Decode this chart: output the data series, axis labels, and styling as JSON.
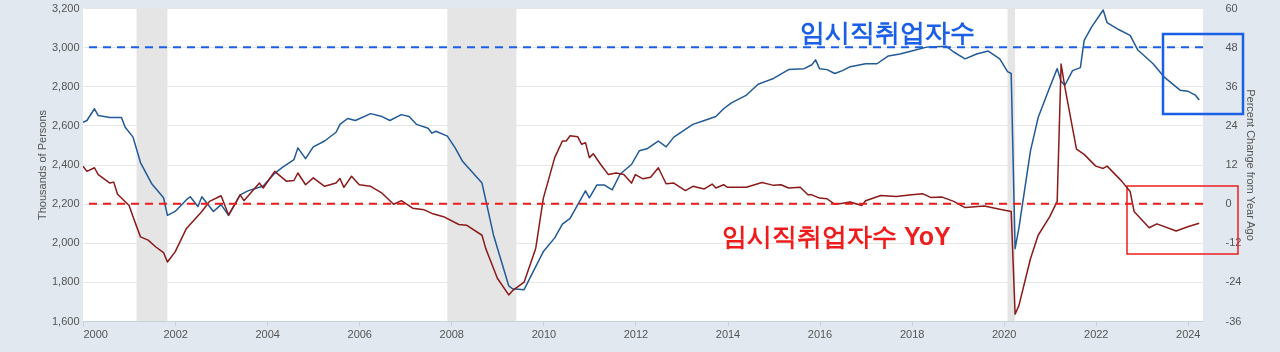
{
  "chart_data": {
    "type": "line",
    "ylabel": "Thousands of Persons",
    "y2label": "Percent Change from Year Ago",
    "xlim": [
      "2000-01",
      "2024-05"
    ],
    "xticks": [
      "2000",
      "2002",
      "2004",
      "2006",
      "2008",
      "2010",
      "2012",
      "2014",
      "2016",
      "2018",
      "2020",
      "2022",
      "2024"
    ],
    "ylim": [
      1600,
      3200
    ],
    "yticks": [
      {
        "value": 1600,
        "label": "1,600"
      },
      {
        "value": 1800,
        "label": "1,800"
      },
      {
        "value": 2000,
        "label": "2,000"
      },
      {
        "value": 2200,
        "label": "2,200"
      },
      {
        "value": 2400,
        "label": "2,400"
      },
      {
        "value": 2600,
        "label": "2,600"
      },
      {
        "value": 2800,
        "label": "2,800"
      },
      {
        "value": 3000,
        "label": "3,000"
      },
      {
        "value": 3200,
        "label": "3,200"
      }
    ],
    "y2lim": [
      -36,
      60
    ],
    "y2ticks": [
      -36,
      -24,
      -12,
      0,
      12,
      24,
      36,
      48,
      60
    ],
    "grid": "y",
    "series": [
      {
        "name": "임시직취업자수",
        "color": "#215a96",
        "x": [
          "2000-01",
          "2000-02",
          "2000-04",
          "2000-05",
          "2000-08",
          "2000-11",
          "2000-12",
          "2001-02",
          "2001-04",
          "2001-07",
          "2001-10",
          "2001-11",
          "2002-01",
          "2002-04",
          "2002-05",
          "2002-07",
          "2002-08",
          "2002-11",
          "2003-01",
          "2003-03",
          "2003-06",
          "2003-08",
          "2003-12",
          "2004-03",
          "2004-05",
          "2004-08",
          "2004-09",
          "2004-11",
          "2005-01",
          "2005-04",
          "2005-07",
          "2005-08",
          "2005-10",
          "2005-12",
          "2006-04",
          "2006-07",
          "2006-09",
          "2006-12",
          "2007-02",
          "2007-04",
          "2007-07",
          "2007-08",
          "2007-09",
          "2007-12",
          "2008-02",
          "2008-04",
          "2008-09",
          "2008-12",
          "2009-04",
          "2009-05",
          "2009-08",
          "2009-09",
          "2010-01",
          "2010-04",
          "2010-06",
          "2010-08",
          "2010-12",
          "2011-01",
          "2011-03",
          "2011-05",
          "2011-07",
          "2011-09",
          "2011-12",
          "2012-02",
          "2012-04",
          "2012-07",
          "2012-09",
          "2012-11",
          "2013-04",
          "2013-07",
          "2013-10",
          "2013-12",
          "2014-02",
          "2014-06",
          "2014-09",
          "2015-01",
          "2015-05",
          "2015-09",
          "2015-11",
          "2015-12",
          "2016-01",
          "2016-03",
          "2016-05",
          "2016-07",
          "2016-09",
          "2017-01",
          "2017-04",
          "2017-07",
          "2017-10",
          "2018-01",
          "2018-05",
          "2018-10",
          "2018-12",
          "2019-03",
          "2019-06",
          "2019-09",
          "2019-12",
          "2020-02",
          "2020-03",
          "2020-04",
          "2020-05",
          "2020-08",
          "2020-10",
          "2021-01",
          "2021-03",
          "2021-04",
          "2021-05",
          "2021-07",
          "2021-09",
          "2021-10",
          "2021-12",
          "2022-03",
          "2022-04",
          "2022-07",
          "2022-10",
          "2022-12",
          "2023-04",
          "2023-07",
          "2023-11",
          "2024-01",
          "2024-03",
          "2024-04"
        ],
        "values": [
          2615,
          2625,
          2685,
          2650,
          2640,
          2640,
          2590,
          2540,
          2410,
          2300,
          2230,
          2140,
          2160,
          2220,
          2235,
          2185,
          2235,
          2160,
          2195,
          2140,
          2245,
          2265,
          2290,
          2355,
          2385,
          2425,
          2485,
          2430,
          2490,
          2520,
          2565,
          2605,
          2635,
          2625,
          2660,
          2645,
          2625,
          2655,
          2645,
          2605,
          2585,
          2560,
          2570,
          2545,
          2485,
          2415,
          2305,
          2040,
          1780,
          1765,
          1760,
          1800,
          1955,
          2025,
          2095,
          2125,
          2265,
          2230,
          2295,
          2295,
          2270,
          2350,
          2400,
          2470,
          2480,
          2520,
          2490,
          2540,
          2605,
          2625,
          2645,
          2685,
          2715,
          2755,
          2810,
          2840,
          2885,
          2890,
          2910,
          2935,
          2890,
          2885,
          2865,
          2880,
          2900,
          2915,
          2915,
          2955,
          2965,
          2980,
          3000,
          3005,
          2975,
          2940,
          2965,
          2980,
          2940,
          2875,
          2865,
          1970,
          2075,
          2470,
          2640,
          2795,
          2890,
          2825,
          2805,
          2880,
          2895,
          3035,
          3105,
          3190,
          3125,
          3090,
          3060,
          2985,
          2915,
          2845,
          2780,
          2775,
          2755,
          2730
        ]
      },
      {
        "name": "임시직취업자수 YoY",
        "color": "#8b1a1a",
        "axis": "y2",
        "x": [
          "2000-01",
          "2000-02",
          "2000-04",
          "2000-05",
          "2000-08",
          "2000-09",
          "2000-10",
          "2001-01",
          "2001-02",
          "2001-04",
          "2001-06",
          "2001-08",
          "2001-10",
          "2001-11",
          "2002-01",
          "2002-04",
          "2002-06",
          "2002-08",
          "2002-10",
          "2003-01",
          "2003-03",
          "2003-06",
          "2003-07",
          "2003-11",
          "2003-12",
          "2004-03",
          "2004-06",
          "2004-08",
          "2004-09",
          "2004-11",
          "2005-01",
          "2005-04",
          "2005-07",
          "2005-08",
          "2005-09",
          "2005-11",
          "2006-01",
          "2006-04",
          "2006-07",
          "2006-10",
          "2006-12",
          "2007-03",
          "2007-06",
          "2007-08",
          "2007-11",
          "2008-03",
          "2008-05",
          "2008-09",
          "2008-10",
          "2009-01",
          "2009-04",
          "2009-05",
          "2009-08",
          "2009-11",
          "2010-01",
          "2010-04",
          "2010-06",
          "2010-07",
          "2010-08",
          "2010-10",
          "2010-11",
          "2010-12",
          "2011-01",
          "2011-02",
          "2011-04",
          "2011-06",
          "2011-08",
          "2011-10",
          "2011-12",
          "2012-01",
          "2012-03",
          "2012-05",
          "2012-07",
          "2012-09",
          "2012-11",
          "2013-02",
          "2013-04",
          "2013-07",
          "2013-09",
          "2013-10",
          "2013-12",
          "2014-01",
          "2014-06",
          "2014-10",
          "2015-01",
          "2015-03",
          "2015-05",
          "2015-08",
          "2015-10",
          "2015-11",
          "2016-01",
          "2016-03",
          "2016-05",
          "2016-07",
          "2016-09",
          "2016-12",
          "2017-01",
          "2017-05",
          "2017-09",
          "2018-01",
          "2018-04",
          "2018-06",
          "2018-09",
          "2018-12",
          "2019-03",
          "2019-08",
          "2019-12",
          "2020-03",
          "2020-04",
          "2020-05",
          "2020-08",
          "2020-10",
          "2021-01",
          "2021-03",
          "2021-04",
          "2021-05",
          "2021-08",
          "2021-10",
          "2022-01",
          "2022-03",
          "2022-04",
          "2022-07",
          "2022-08",
          "2022-10",
          "2022-11",
          "2023-03",
          "2023-05",
          "2023-10",
          "2024-01",
          "2024-04"
        ],
        "values": [
          11.5,
          9.9,
          11.0,
          8.9,
          6.3,
          6.6,
          2.9,
          -0.6,
          -4.0,
          -10.2,
          -11.2,
          -13.3,
          -15.0,
          -17.9,
          -14.8,
          -7.6,
          -5.0,
          -2.4,
          0.7,
          2.4,
          -3.5,
          2.7,
          0.9,
          6.3,
          4.8,
          9.9,
          6.9,
          7.1,
          9.4,
          5.8,
          7.9,
          5.3,
          6.3,
          7.7,
          5.0,
          8.4,
          5.8,
          5.3,
          3.2,
          -0.2,
          0.9,
          -1.4,
          -1.9,
          -3.0,
          -4.0,
          -6.4,
          -6.6,
          -9.7,
          -13.8,
          -22.9,
          -28.0,
          -26.7,
          -24.1,
          -13.8,
          1.7,
          14.1,
          19.2,
          19.2,
          20.8,
          20.5,
          18.2,
          18.7,
          14.1,
          15.3,
          12.0,
          8.9,
          9.4,
          8.9,
          6.3,
          8.9,
          7.6,
          8.1,
          11.0,
          6.1,
          6.3,
          4.0,
          5.3,
          4.5,
          6.0,
          4.8,
          5.8,
          5.0,
          5.0,
          6.5,
          5.6,
          5.8,
          4.8,
          5.0,
          2.7,
          2.7,
          1.7,
          1.5,
          -0.2,
          0.1,
          0.5,
          -0.6,
          0.9,
          2.5,
          2.2,
          2.7,
          3.0,
          1.9,
          2.0,
          0.7,
          -1.2,
          -0.7,
          -1.7,
          -2.4,
          -33.9,
          -31.3,
          -16.9,
          -9.7,
          -4.0,
          0.7,
          42.8,
          35.7,
          16.7,
          15.1,
          11.5,
          10.8,
          11.5,
          7.9,
          6.6,
          3.7,
          -2.4,
          -7.4,
          -6.2,
          -8.4,
          -7.1,
          -6.0
        ]
      }
    ],
    "bands": [
      {
        "axis": "x",
        "from": "2001-03",
        "to": "2001-11",
        "color": "#e5e5e5"
      },
      {
        "axis": "x",
        "from": "2007-12",
        "to": "2009-06",
        "color": "#e5e5e5"
      },
      {
        "axis": "x",
        "from": "2020-02",
        "to": "2020-04",
        "color": "#e5e5e5"
      }
    ],
    "ref_lines": [
      {
        "axis": "y",
        "value": 3000,
        "color": "#1a5fe6",
        "line_style": "dashed"
      },
      {
        "axis": "y2",
        "value": 0,
        "color": "#ee1c1c",
        "line_style": "dashed"
      }
    ]
  }
}
